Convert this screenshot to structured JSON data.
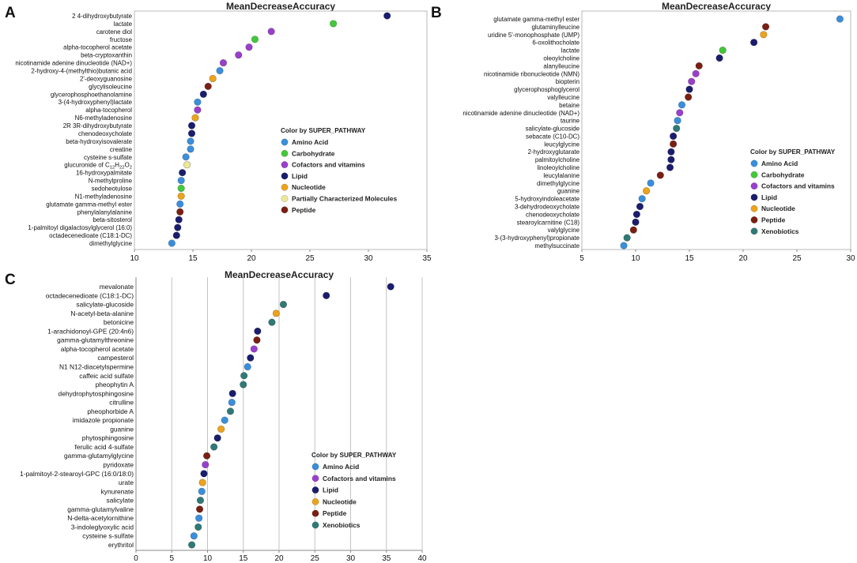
{
  "colors": {
    "Amino Acid": "#3a8fdc",
    "Carbohydrate": "#43c83a",
    "Cofactors and vitamins": "#9a3fcc",
    "Lipid": "#1a1d6e",
    "Nucleotide": "#eda31c",
    "Partially Characterized Molecules": "#ece79a",
    "Peptide": "#7a1f12",
    "Xenobiotics": "#2f7a76"
  },
  "chart_data": [
    {
      "panel": "A",
      "type": "scatter",
      "title": "MeanDecreaseAccuracy",
      "xlim": [
        10,
        35
      ],
      "xticks": [
        10,
        15,
        20,
        25,
        30,
        35
      ],
      "legend_title": "Color by SUPER_PATHWAY",
      "legend_position": "right",
      "legend": [
        "Amino Acid",
        "Carbohydrate",
        "Cofactors and vitamins",
        "Lipid",
        "Nucleotide",
        "Partially Characterized Molecules",
        "Peptide"
      ],
      "points": [
        {
          "label": "2 4-dihydroxybutyrate",
          "value": 31.6,
          "pathway": "Lipid"
        },
        {
          "label": "lactate",
          "value": 27.0,
          "pathway": "Carbohydrate"
        },
        {
          "label": "carotene diol",
          "value": 21.7,
          "pathway": "Cofactors and vitamins"
        },
        {
          "label": "fructose",
          "value": 20.3,
          "pathway": "Carbohydrate"
        },
        {
          "label": "alpha-tocopherol acetate",
          "value": 19.8,
          "pathway": "Cofactors and vitamins"
        },
        {
          "label": "beta-cryptoxanthin",
          "value": 18.9,
          "pathway": "Cofactors and vitamins"
        },
        {
          "label": "nicotinamide adenine dinucleotide (NAD+)",
          "value": 17.6,
          "pathway": "Cofactors and vitamins"
        },
        {
          "label": "2-hydroxy-4-(methylthio)butanic acid",
          "value": 17.3,
          "pathway": "Amino Acid"
        },
        {
          "label": "2'-deoxyguanosine",
          "value": 16.7,
          "pathway": "Nucleotide"
        },
        {
          "label": "glycylisoleucine",
          "value": 16.3,
          "pathway": "Peptide"
        },
        {
          "label": "glycerophosphoethanolamine",
          "value": 15.9,
          "pathway": "Lipid"
        },
        {
          "label": "3-(4-hydroxyphenyl)lactate",
          "value": 15.4,
          "pathway": "Amino Acid"
        },
        {
          "label": "alpha-tocopherol",
          "value": 15.4,
          "pathway": "Cofactors and vitamins"
        },
        {
          "label": "N6-methyladenosine",
          "value": 15.2,
          "pathway": "Nucleotide"
        },
        {
          "label": "2R 3R-dihydroxybutyrate",
          "value": 14.9,
          "pathway": "Lipid"
        },
        {
          "label": "chenodeoxycholate",
          "value": 14.9,
          "pathway": "Lipid"
        },
        {
          "label": "beta-hydroxyisovalerate",
          "value": 14.8,
          "pathway": "Amino Acid"
        },
        {
          "label": "creatine",
          "value": 14.8,
          "pathway": "Amino Acid"
        },
        {
          "label": "cysteine s-sulfate",
          "value": 14.4,
          "pathway": "Amino Acid"
        },
        {
          "label": "glucuronide of C12H22O2",
          "value": 14.5,
          "pathway": "Partially Characterized Molecules"
        },
        {
          "label": "16-hydroxypalmitate",
          "value": 14.1,
          "pathway": "Lipid"
        },
        {
          "label": "N-methylproline",
          "value": 14.0,
          "pathway": "Amino Acid"
        },
        {
          "label": "sedoheotulose",
          "value": 14.0,
          "pathway": "Carbohydrate"
        },
        {
          "label": "N1-methyladenosine",
          "value": 14.0,
          "pathway": "Nucleotide"
        },
        {
          "label": "glutamate gamma-methyl ester",
          "value": 13.9,
          "pathway": "Amino Acid"
        },
        {
          "label": "phenylalanylalanine",
          "value": 13.9,
          "pathway": "Peptide"
        },
        {
          "label": "beta-sitosterol",
          "value": 13.8,
          "pathway": "Lipid"
        },
        {
          "label": "1-palmitoyl digalactosylglycerol (16:0)",
          "value": 13.7,
          "pathway": "Lipid"
        },
        {
          "label": "octadecenedioate (C18:1-DC)",
          "value": 13.6,
          "pathway": "Lipid"
        },
        {
          "label": "dimethylglycine",
          "value": 13.2,
          "pathway": "Amino Acid"
        }
      ]
    },
    {
      "panel": "B",
      "type": "scatter",
      "title": "MeanDecreaseAccuracy",
      "xlim": [
        5,
        30
      ],
      "xticks": [
        5,
        10,
        15,
        20,
        25,
        30
      ],
      "legend_title": "Color by SUPER_PATHWAY",
      "legend_position": "right",
      "legend": [
        "Amino Acid",
        "Carbohydrate",
        "Cofactors and vitamins",
        "Lipid",
        "Nucleotide",
        "Peptide",
        "Xenobiotics"
      ],
      "points": [
        {
          "label": "glutamate gamma-methyl ester",
          "value": 29.0,
          "pathway": "Amino Acid"
        },
        {
          "label": "glutaminylleucine",
          "value": 22.1,
          "pathway": "Peptide"
        },
        {
          "label": "uridine 5'-monophosphate (UMP)",
          "value": 21.9,
          "pathway": "Nucleotide"
        },
        {
          "label": "6-oxolithocholate",
          "value": 21.0,
          "pathway": "Lipid"
        },
        {
          "label": "lactate",
          "value": 18.1,
          "pathway": "Carbohydrate"
        },
        {
          "label": "oleoylcholine",
          "value": 17.8,
          "pathway": "Lipid"
        },
        {
          "label": "alanylleucine",
          "value": 15.9,
          "pathway": "Peptide"
        },
        {
          "label": "nicotinamide ribonucleotide (NMN)",
          "value": 15.6,
          "pathway": "Cofactors and vitamins"
        },
        {
          "label": "biopterin",
          "value": 15.2,
          "pathway": "Cofactors and vitamins"
        },
        {
          "label": "glycerophosphoglycerol",
          "value": 15.0,
          "pathway": "Lipid"
        },
        {
          "label": "valylleucine",
          "value": 14.9,
          "pathway": "Peptide"
        },
        {
          "label": "betaine",
          "value": 14.3,
          "pathway": "Amino Acid"
        },
        {
          "label": "nicotinamide adenine dinucleotide (NAD+)",
          "value": 14.1,
          "pathway": "Cofactors and vitamins"
        },
        {
          "label": "taurine",
          "value": 13.9,
          "pathway": "Amino Acid"
        },
        {
          "label": "salicylate-glucoside",
          "value": 13.8,
          "pathway": "Xenobiotics"
        },
        {
          "label": "sebacate (C10-DC)",
          "value": 13.5,
          "pathway": "Lipid"
        },
        {
          "label": "leucylglycine",
          "value": 13.5,
          "pathway": "Peptide"
        },
        {
          "label": "2-hydroxyglutarate",
          "value": 13.3,
          "pathway": "Lipid"
        },
        {
          "label": "palmitoylcholine",
          "value": 13.3,
          "pathway": "Lipid"
        },
        {
          "label": "linoleoylcholine",
          "value": 13.2,
          "pathway": "Lipid"
        },
        {
          "label": "leucylalanine",
          "value": 12.3,
          "pathway": "Peptide"
        },
        {
          "label": "dimethylglycine",
          "value": 11.4,
          "pathway": "Amino Acid"
        },
        {
          "label": "guanine",
          "value": 11.0,
          "pathway": "Nucleotide"
        },
        {
          "label": "5-hydroxyindoleacetate",
          "value": 10.6,
          "pathway": "Amino Acid"
        },
        {
          "label": "3-dehydrodeoxycholate",
          "value": 10.4,
          "pathway": "Lipid"
        },
        {
          "label": "chenodeoxycholate",
          "value": 10.1,
          "pathway": "Lipid"
        },
        {
          "label": "stearoylcarnitine (C18)",
          "value": 10.0,
          "pathway": "Lipid"
        },
        {
          "label": "valylglycine",
          "value": 9.8,
          "pathway": "Peptide"
        },
        {
          "label": "3-(3-hydroxyphenyl)propionate",
          "value": 9.2,
          "pathway": "Xenobiotics"
        },
        {
          "label": "methylsuccinate",
          "value": 8.9,
          "pathway": "Amino Acid"
        }
      ]
    },
    {
      "panel": "C",
      "type": "scatter",
      "title": "MeanDecreaseAccuracy",
      "xlim": [
        0,
        40
      ],
      "xticks": [
        0,
        5,
        10,
        15,
        20,
        25,
        30,
        35,
        40
      ],
      "grid": true,
      "legend_title": "Color by SUPER_PATHWAY",
      "legend_position": "right",
      "legend": [
        "Amino Acid",
        "Cofactors and vitamins",
        "Lipid",
        "Nucleotide",
        "Peptide",
        "Xenobiotics"
      ],
      "points": [
        {
          "label": "mevalonate",
          "value": 35.6,
          "pathway": "Lipid"
        },
        {
          "label": "octadecenedioate (C18:1-DC)",
          "value": 26.6,
          "pathway": "Lipid"
        },
        {
          "label": "salicylate-glucoside",
          "value": 20.6,
          "pathway": "Xenobiotics"
        },
        {
          "label": "N-acetyl-beta-alanine",
          "value": 19.6,
          "pathway": "Nucleotide"
        },
        {
          "label": "betonicine",
          "value": 19.0,
          "pathway": "Xenobiotics"
        },
        {
          "label": "1-arachidonoyl-GPE (20:4n6)",
          "value": 17.0,
          "pathway": "Lipid"
        },
        {
          "label": "gamma-glutamylthreonine",
          "value": 16.9,
          "pathway": "Peptide"
        },
        {
          "label": "alpha-tocopherol acetate",
          "value": 16.5,
          "pathway": "Cofactors and vitamins"
        },
        {
          "label": "campesterol",
          "value": 16.0,
          "pathway": "Lipid"
        },
        {
          "label": "N1 N12-diacetylspermine",
          "value": 15.6,
          "pathway": "Amino Acid"
        },
        {
          "label": "caffeic acid sulfate",
          "value": 15.1,
          "pathway": "Xenobiotics"
        },
        {
          "label": "pheophytin A",
          "value": 15.0,
          "pathway": "Xenobiotics"
        },
        {
          "label": "dehydrophytosphingosine",
          "value": 13.5,
          "pathway": "Lipid"
        },
        {
          "label": "citrulline",
          "value": 13.4,
          "pathway": "Amino Acid"
        },
        {
          "label": "pheophorbide A",
          "value": 13.2,
          "pathway": "Xenobiotics"
        },
        {
          "label": "imidazole propionate",
          "value": 12.4,
          "pathway": "Amino Acid"
        },
        {
          "label": "guanine",
          "value": 11.9,
          "pathway": "Nucleotide"
        },
        {
          "label": "phytosphingosine",
          "value": 11.4,
          "pathway": "Lipid"
        },
        {
          "label": "ferulic acid 4-sulfate",
          "value": 10.9,
          "pathway": "Xenobiotics"
        },
        {
          "label": "gamma-glutamylglycine",
          "value": 9.9,
          "pathway": "Peptide"
        },
        {
          "label": "pyridoxate",
          "value": 9.7,
          "pathway": "Cofactors and vitamins"
        },
        {
          "label": "1-palmitoyl-2-stearoyl-GPC (16:0/18:0)",
          "value": 9.5,
          "pathway": "Lipid"
        },
        {
          "label": "urate",
          "value": 9.3,
          "pathway": "Nucleotide"
        },
        {
          "label": "kynurenate",
          "value": 9.2,
          "pathway": "Amino Acid"
        },
        {
          "label": "salicylate",
          "value": 9.0,
          "pathway": "Xenobiotics"
        },
        {
          "label": "gamma-glutamylvaline",
          "value": 8.9,
          "pathway": "Peptide"
        },
        {
          "label": "N-delta-acetylornithine",
          "value": 8.8,
          "pathway": "Amino Acid"
        },
        {
          "label": "3-indoleglyoxylic acid",
          "value": 8.7,
          "pathway": "Xenobiotics"
        },
        {
          "label": "cysteine s-sulfate",
          "value": 8.1,
          "pathway": "Amino Acid"
        },
        {
          "label": "erythritol",
          "value": 7.8,
          "pathway": "Xenobiotics"
        }
      ]
    }
  ]
}
